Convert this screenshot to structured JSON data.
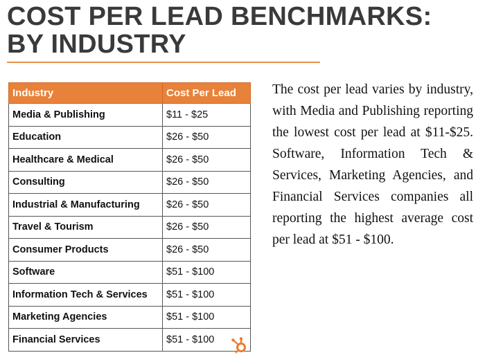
{
  "header": {
    "title": [
      "COST PER LEAD BENCHMARKS:",
      "BY INDUSTRY"
    ]
  },
  "table": {
    "columns": [
      "Industry",
      "Cost Per Lead"
    ],
    "rows": [
      [
        "Media & Publishing",
        "$11 - $25"
      ],
      [
        "Education",
        "$26 - $50"
      ],
      [
        "Healthcare & Medical",
        "$26 - $50"
      ],
      [
        "Consulting",
        "$26 - $50"
      ],
      [
        "Industrial & Manufacturing",
        "$26 - $50"
      ],
      [
        "Travel & Tourism",
        "$26 - $50"
      ],
      [
        "Consumer Products",
        "$26 - $50"
      ],
      [
        "Software",
        "$51 - $100"
      ],
      [
        "Information Tech & Services",
        "$51 - $100"
      ],
      [
        "Marketing Agencies",
        "$51 - $100"
      ],
      [
        "Financial Services",
        "$51 - $100"
      ]
    ]
  },
  "body": {
    "text": "The cost per lead varies by industry, with Media and Publishing reporting the lowest cost per lead at $11-$25. Software, Information Tech & Services, Marketing Agencies, and Financial Services companies all reporting the highest average cost per lead at $51 - $100."
  }
}
